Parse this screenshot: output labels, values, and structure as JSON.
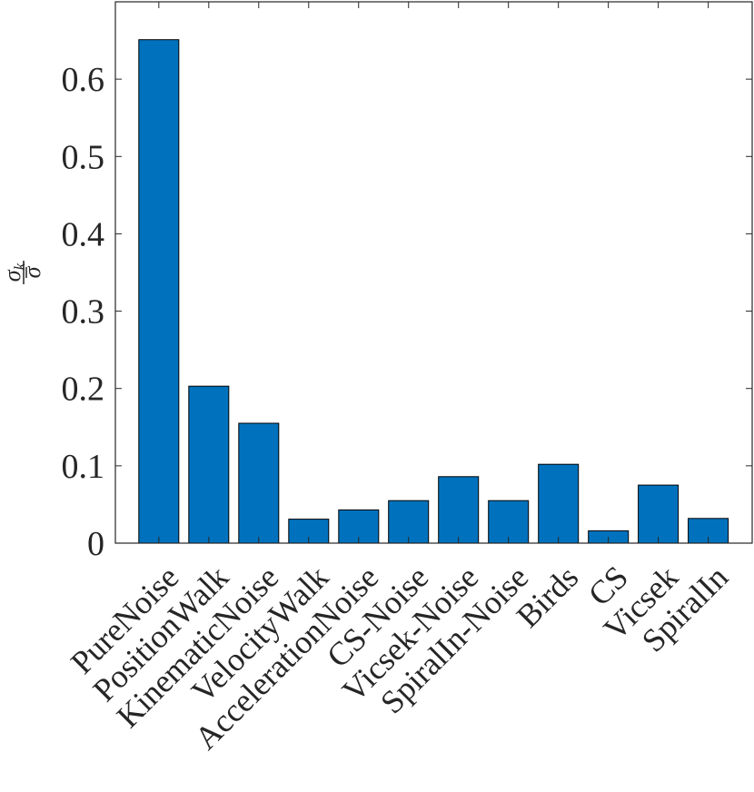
{
  "chart_data": {
    "type": "bar",
    "categories": [
      "PureNoise",
      "PositionWalk",
      "KinematicNoise",
      "VelocityWalk",
      "AccelerationNoise",
      "CS-Noise",
      "Vicsek-Noise",
      "SpiralIn-Noise",
      "Birds",
      "CS",
      "Vicsek",
      "SpiralIn"
    ],
    "values": [
      0.651,
      0.203,
      0.155,
      0.031,
      0.043,
      0.055,
      0.086,
      0.055,
      0.102,
      0.016,
      0.075,
      0.032
    ],
    "ylabel": "σk/σ̄",
    "ylim": [
      0,
      0.7
    ],
    "yticks": [
      0,
      0.1,
      0.2,
      0.3,
      0.4,
      0.5,
      0.6
    ],
    "ytick_labels": [
      "0",
      "0.1",
      "0.2",
      "0.3",
      "0.4",
      "0.5",
      "0.6"
    ],
    "grid": false,
    "bar_color": "#0072BD"
  }
}
